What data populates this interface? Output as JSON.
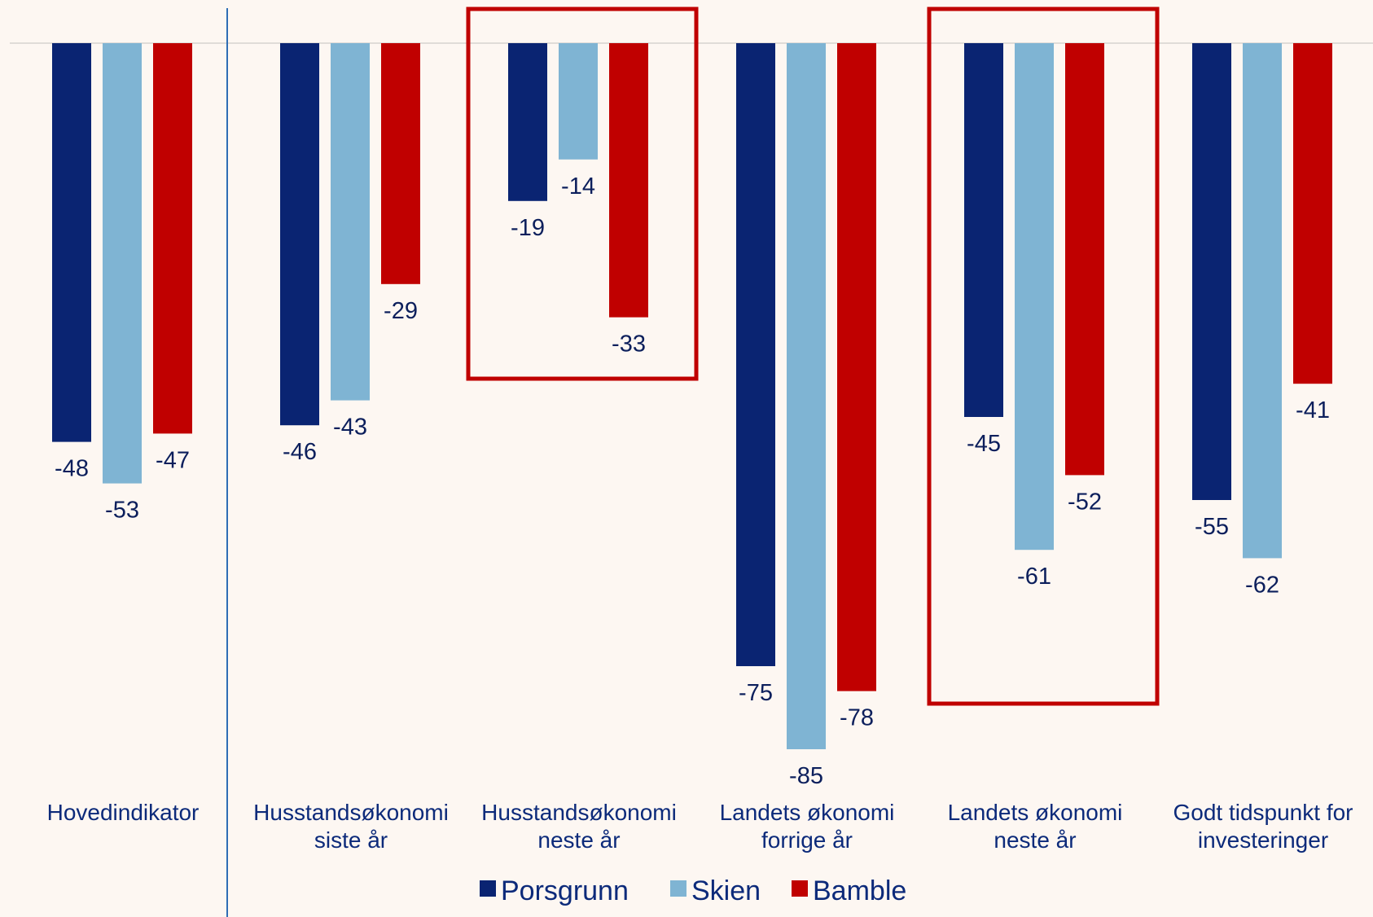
{
  "chart_data": {
    "type": "bar",
    "categories": [
      [
        "Hovedindikator"
      ],
      [
        "Husstandsøkonomi",
        "siste år"
      ],
      [
        "Husstandsøkonomi",
        "neste år"
      ],
      [
        "Landets økonomi",
        "forrige år"
      ],
      [
        "Landets økonomi",
        "neste år"
      ],
      [
        "Godt tidspunkt for",
        "investeringer"
      ]
    ],
    "series": [
      {
        "name": "Porsgrunn",
        "color": "#0a2472",
        "values": [
          -48,
          -46,
          -19,
          -75,
          -45,
          -55
        ]
      },
      {
        "name": "Skien",
        "color": "#7fb4d3",
        "values": [
          -53,
          -43,
          -14,
          -85,
          -61,
          -62
        ]
      },
      {
        "name": "Bamble",
        "color": "#c00000",
        "values": [
          -47,
          -29,
          -33,
          -78,
          -52,
          -41
        ]
      }
    ],
    "ylim": [
      -90,
      0
    ],
    "highlighted_categories": [
      2,
      4
    ],
    "highlight_color": "#c00000",
    "legend_position": "bottom",
    "value_label_color": "#0c1f5c",
    "category_label_color": "#0c2a7a",
    "zero_line_color": "#e0dcd8",
    "separator_color": "#2f6db5"
  }
}
